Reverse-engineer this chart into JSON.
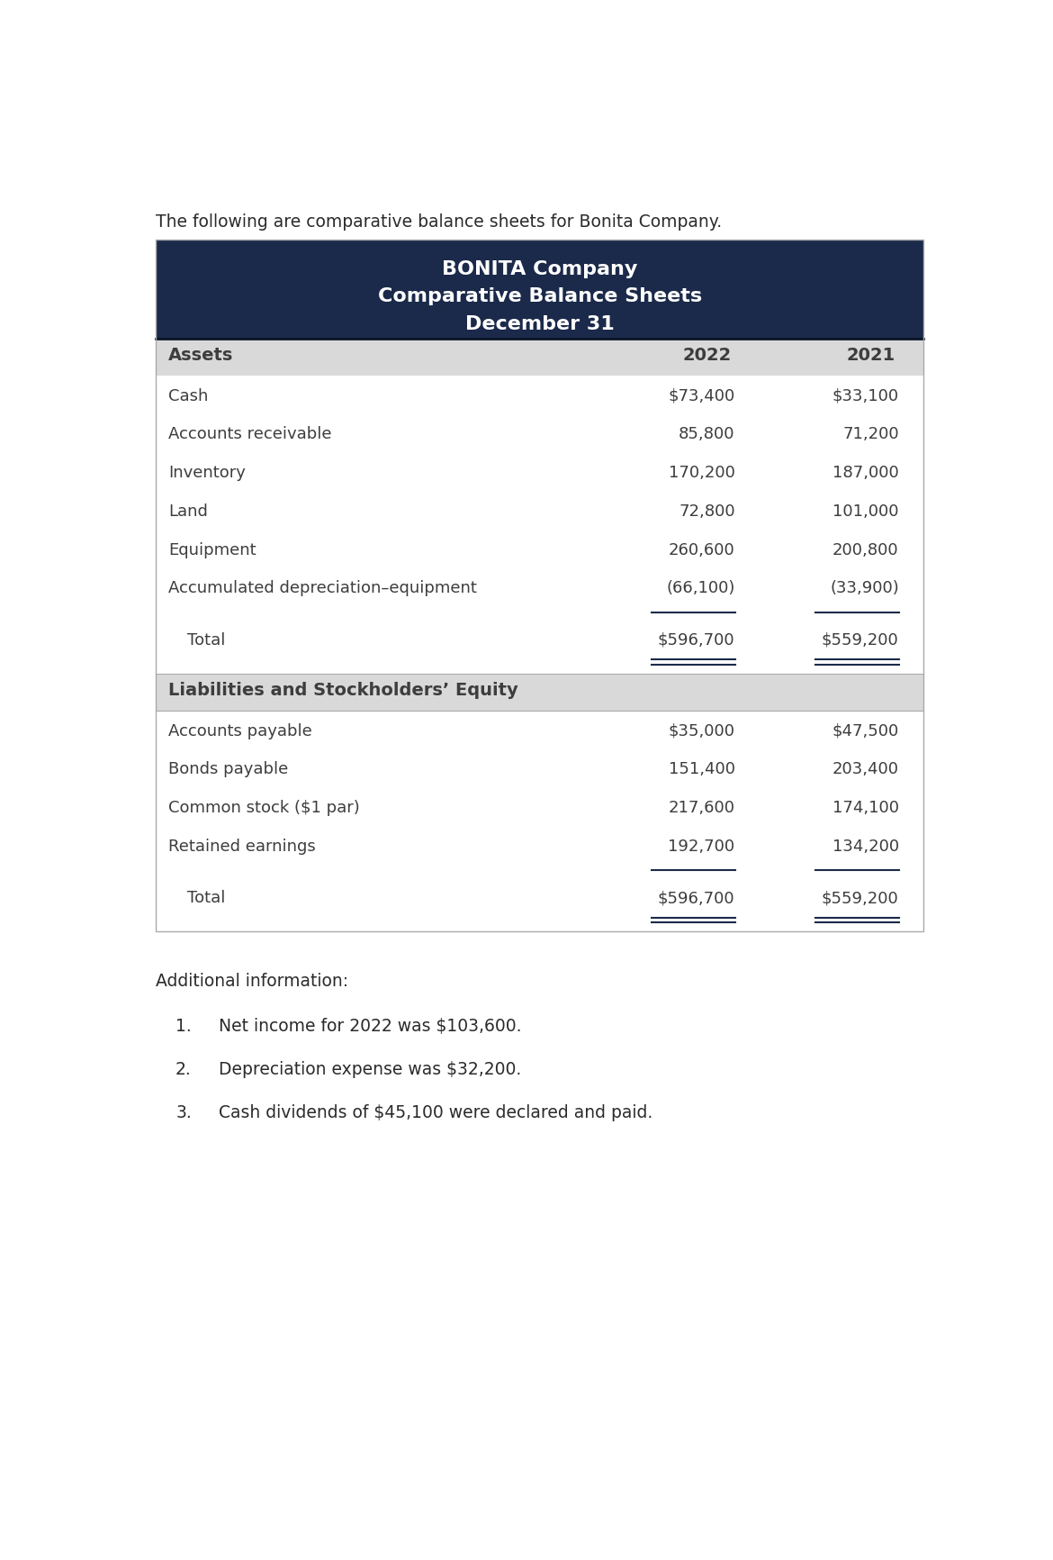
{
  "intro_text": "The following are comparative balance sheets for Bonita Company.",
  "header_bg_color": "#1B2A4A",
  "header_text_color": "#FFFFFF",
  "header_line1": "BONITA Company",
  "header_line2": "Comparative Balance Sheets",
  "header_line3": "December 31",
  "subheader_bg_color": "#D9D9D9",
  "col_header_label": "Assets",
  "col_2022": "2022",
  "col_2021": "2021",
  "assets_rows": [
    {
      "label": "Cash",
      "v2022": "$73,400",
      "v2021": "$33,100"
    },
    {
      "label": "Accounts receivable",
      "v2022": "85,800",
      "v2021": "71,200"
    },
    {
      "label": "Inventory",
      "v2022": "170,200",
      "v2021": "187,000"
    },
    {
      "label": "Land",
      "v2022": "72,800",
      "v2021": "101,000"
    },
    {
      "label": "Equipment",
      "v2022": "260,600",
      "v2021": "200,800"
    },
    {
      "label": "Accumulated depreciation–equipment",
      "v2022": "(66,100)",
      "v2021": "(33,900)"
    }
  ],
  "assets_total_label": "Total",
  "assets_total_2022": "$596,700",
  "assets_total_2021": "$559,200",
  "liab_header_label": "Liabilities and Stockholders’ Equity",
  "liab_rows": [
    {
      "label": "Accounts payable",
      "v2022": "$35,000",
      "v2021": "$47,500"
    },
    {
      "label": "Bonds payable",
      "v2022": "151,400",
      "v2021": "203,400"
    },
    {
      "label": "Common stock ($1 par)",
      "v2022": "217,600",
      "v2021": "174,100"
    },
    {
      "label": "Retained earnings",
      "v2022": "192,700",
      "v2021": "134,200"
    }
  ],
  "liab_total_label": "Total",
  "liab_total_2022": "$596,700",
  "liab_total_2021": "$559,200",
  "additional_title": "Additional information:",
  "additional_items": [
    "Net income for 2022 was $103,600.",
    "Depreciation expense was $32,200.",
    "Cash dividends of $45,100 were declared and paid."
  ],
  "text_color": "#3D3D3D",
  "line_color": "#1B2A4A",
  "label_fontsize": 13,
  "header_fontsize": 16
}
